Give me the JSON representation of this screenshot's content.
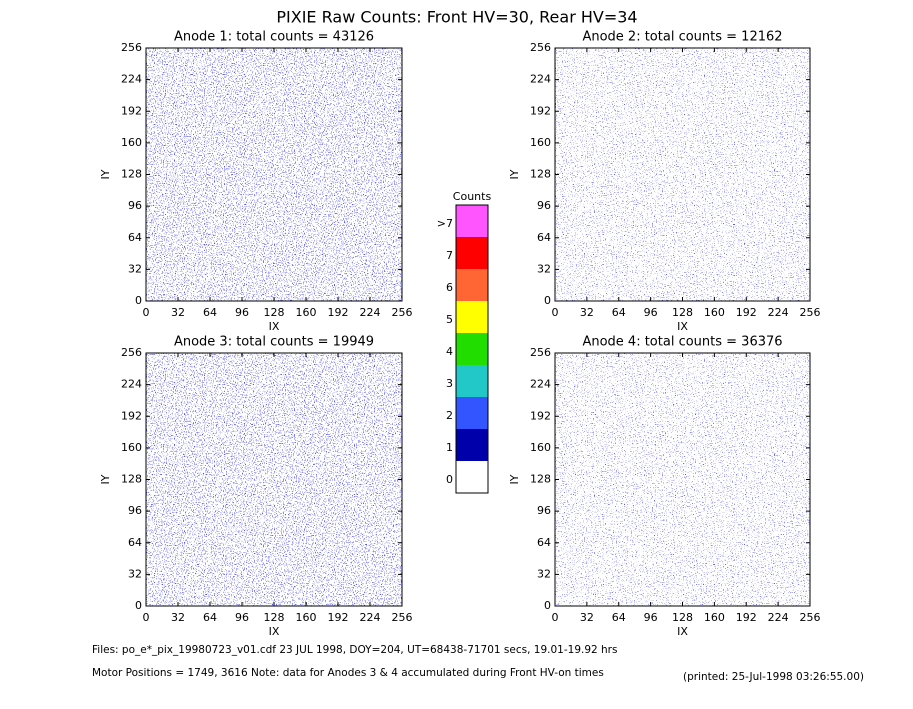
{
  "title": "PIXIE Raw Counts:  Front HV=30, Rear HV=34",
  "chart_data": [
    {
      "type": "heatmap",
      "title": "Anode 1: total counts = 43126",
      "xlabel": "IX",
      "ylabel": "IY",
      "xlim": [
        0,
        256
      ],
      "xticks": [
        0,
        32,
        64,
        96,
        128,
        160,
        192,
        224,
        256
      ],
      "ylim": [
        0,
        256
      ],
      "yticks": [
        0,
        32,
        64,
        96,
        128,
        160,
        192,
        224,
        256
      ]
    },
    {
      "type": "heatmap",
      "title": "Anode 2: total counts = 12162",
      "xlabel": "IX",
      "ylabel": "IY",
      "xlim": [
        0,
        256
      ],
      "xticks": [
        0,
        32,
        64,
        96,
        128,
        160,
        192,
        224,
        256
      ],
      "ylim": [
        0,
        256
      ],
      "yticks": [
        0,
        32,
        64,
        96,
        128,
        160,
        192,
        224,
        256
      ]
    },
    {
      "type": "heatmap",
      "title": "Anode 3: total counts = 19949",
      "xlabel": "IX",
      "ylabel": "IY",
      "xlim": [
        0,
        256
      ],
      "xticks": [
        0,
        32,
        64,
        96,
        128,
        160,
        192,
        224,
        256
      ],
      "ylim": [
        0,
        256
      ],
      "yticks": [
        0,
        32,
        64,
        96,
        128,
        160,
        192,
        224,
        256
      ]
    },
    {
      "type": "heatmap",
      "title": "Anode 4: total counts = 36376",
      "xlabel": "IX",
      "ylabel": "IY",
      "xlim": [
        0,
        256
      ],
      "xticks": [
        0,
        32,
        64,
        96,
        128,
        160,
        192,
        224,
        256
      ],
      "ylim": [
        0,
        256
      ],
      "yticks": [
        0,
        32,
        64,
        96,
        128,
        160,
        192,
        224,
        256
      ]
    }
  ],
  "colorbar": {
    "title": "Counts",
    "ticks": [
      0,
      1,
      2,
      3,
      4,
      5,
      6,
      7,
      {
        "value": 8,
        "label": ">7"
      }
    ],
    "colors": [
      "#ffffff",
      "#0000aa",
      "#3355ff",
      "#22c8c8",
      "#22dd00",
      "#ffff00",
      "#ff6633",
      "#ff0000",
      "#ff55ff"
    ]
  },
  "footer": {
    "files": "Files: po_e*_pix_19980723_v01.cdf    23 JUL 1998, DOY=204, UT=68438-71701 secs, 19.01-19.92 hrs",
    "motor": "Motor Positions = 1749, 3616   Note: data for Anodes 3 & 4 accumulated during Front HV-on times",
    "printed": "(printed: 25-Jul-1998 03:26:55.00)"
  }
}
